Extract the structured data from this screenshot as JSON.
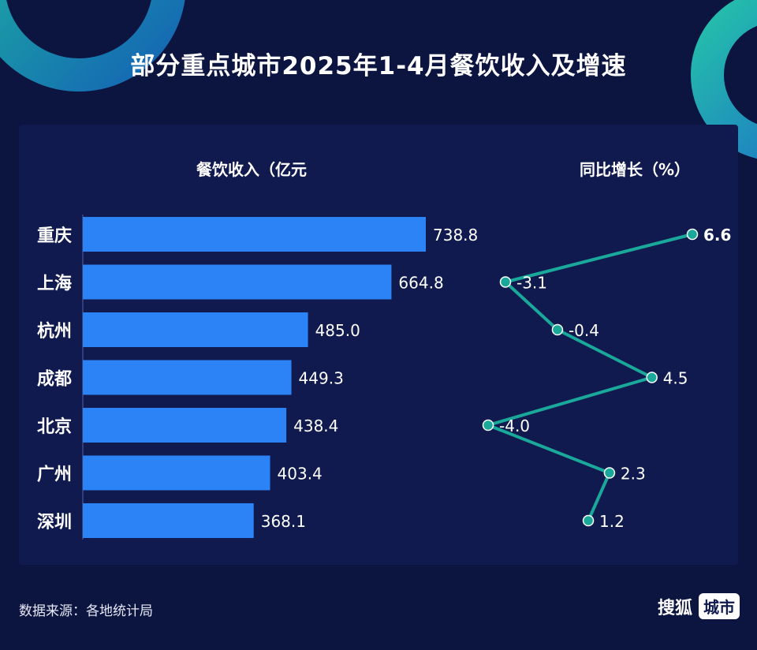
{
  "title": "部分重点城市2025年1-4月餐饮收入及增速",
  "colors": {
    "background": "#0c1440",
    "panel": "#101a4f",
    "bar": "#2b83f6",
    "line": "#1aa89a",
    "text": "#ffffff"
  },
  "chart_data": {
    "type": "bar",
    "categories": [
      "重庆",
      "上海",
      "杭州",
      "成都",
      "北京",
      "广州",
      "深圳"
    ],
    "series": [
      {
        "name": "餐饮收入（亿元",
        "type": "bar",
        "values": [
          738.8,
          664.8,
          485.0,
          449.3,
          438.4,
          403.4,
          368.1
        ]
      },
      {
        "name": "同比增长（%）",
        "type": "line",
        "values": [
          6.6,
          -3.1,
          -0.4,
          4.5,
          -4.0,
          2.3,
          1.2
        ]
      }
    ],
    "value_labels_bar": [
      "738.8",
      "664.8",
      "485.0",
      "449.3",
      "438.4",
      "403.4",
      "368.1"
    ],
    "value_labels_line": [
      "6.6",
      "-3.1",
      "-0.4",
      "4.5",
      "-4.0",
      "2.3",
      "1.2"
    ],
    "bar_xlim": [
      0,
      750
    ],
    "line_xlim": [
      -5,
      7
    ],
    "orientation": "horizontal"
  },
  "footer": {
    "source": "数据来源：各地统计局",
    "brand_name": "搜狐",
    "brand_badge": "城市"
  }
}
